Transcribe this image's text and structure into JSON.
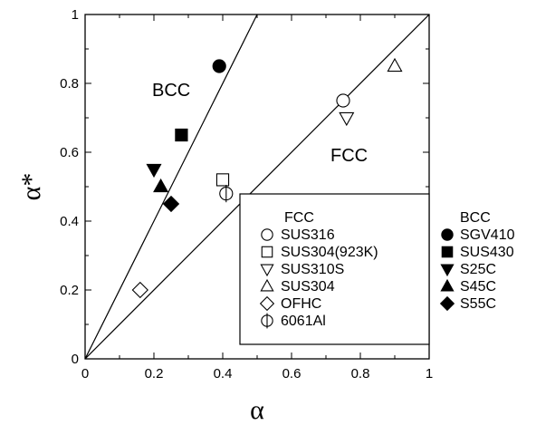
{
  "chart_data": {
    "type": "scatter",
    "xlabel": "α",
    "ylabel": "α*",
    "xlim": [
      0,
      1
    ],
    "ylim": [
      0,
      1
    ],
    "xticks": [
      "0",
      "0.2",
      "0.4",
      "0.6",
      "0.8",
      "1"
    ],
    "yticks": [
      "0",
      "0.2",
      "0.4",
      "0.6",
      "0.8",
      "1"
    ],
    "grid": false,
    "reference_lines": [
      {
        "label": "BCC",
        "slope": 2.0
      },
      {
        "label": "FCC",
        "slope": 1.0
      }
    ],
    "legend": {
      "position": "bottom-right",
      "groups": [
        {
          "title": "FCC",
          "entries": [
            "SUS316",
            "SUS304(923K)",
            "SUS310S",
            "SUS304",
            "OFHC",
            "6061Al"
          ]
        },
        {
          "title": "BCC",
          "entries": [
            "SGV410",
            "SUS430",
            "S25C",
            "S45C",
            "S55C"
          ]
        }
      ]
    },
    "series": [
      {
        "name": "SUS316",
        "marker": "circle-open",
        "x": [
          0.75
        ],
        "y": [
          0.75
        ]
      },
      {
        "name": "SUS304(923K)",
        "marker": "square-open",
        "x": [
          0.4
        ],
        "y": [
          0.52
        ]
      },
      {
        "name": "SUS310S",
        "marker": "triangle-down-open",
        "x": [
          0.76
        ],
        "y": [
          0.7
        ]
      },
      {
        "name": "SUS304",
        "marker": "triangle-up-open",
        "x": [
          0.9
        ],
        "y": [
          0.85
        ]
      },
      {
        "name": "OFHC",
        "marker": "diamond-open",
        "x": [
          0.16
        ],
        "y": [
          0.2
        ]
      },
      {
        "name": "6061Al",
        "marker": "circle-bar",
        "x": [
          0.41
        ],
        "y": [
          0.48
        ]
      },
      {
        "name": "SGV410",
        "marker": "circle-filled",
        "x": [
          0.39
        ],
        "y": [
          0.85
        ]
      },
      {
        "name": "SUS430",
        "marker": "square-filled",
        "x": [
          0.28
        ],
        "y": [
          0.65
        ]
      },
      {
        "name": "S25C",
        "marker": "triangle-down-filled",
        "x": [
          0.2
        ],
        "y": [
          0.55
        ]
      },
      {
        "name": "S45C",
        "marker": "triangle-up-filled",
        "x": [
          0.22
        ],
        "y": [
          0.5
        ]
      },
      {
        "name": "S55C",
        "marker": "diamond-filled",
        "x": [
          0.25
        ],
        "y": [
          0.45
        ]
      }
    ]
  }
}
